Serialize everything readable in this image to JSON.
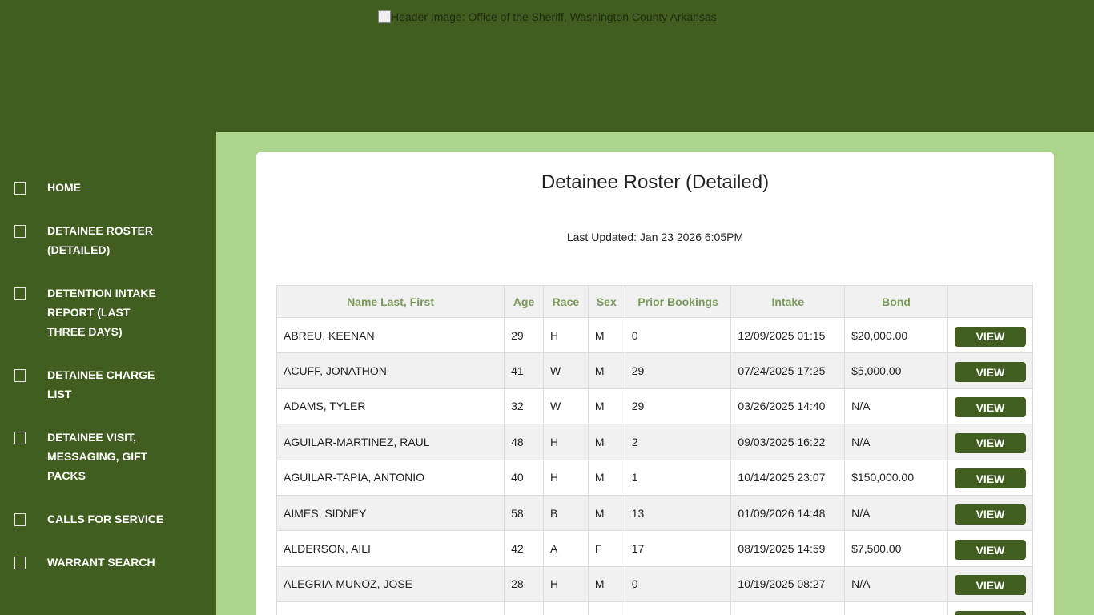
{
  "header": {
    "image_alt": "Header Image: Office of the Sheriff, Washington County Arkansas"
  },
  "sidebar": {
    "items": [
      {
        "label": "HOME",
        "icon": "missing-glyph-icon"
      },
      {
        "label": "DETAINEE ROSTER (DETAILED)",
        "icon": "missing-glyph-icon"
      },
      {
        "label": "DETENTION INTAKE REPORT (LAST THREE DAYS)",
        "icon": "missing-glyph-icon"
      },
      {
        "label": "DETAINEE CHARGE LIST",
        "icon": "missing-glyph-icon"
      },
      {
        "label": "DETAINEE VISIT, MESSAGING, GIFT PACKS",
        "icon": "missing-glyph-icon"
      },
      {
        "label": "CALLS FOR SERVICE",
        "icon": "missing-glyph-icon"
      },
      {
        "label": "WARRANT SEARCH",
        "icon": "missing-glyph-icon"
      }
    ]
  },
  "main": {
    "title": "Detainee Roster (Detailed)",
    "last_updated": "Last Updated: Jan 23 2026 6:05PM",
    "columns": [
      "Name Last, First",
      "Age",
      "Race",
      "Sex",
      "Prior Bookings",
      "Intake",
      "Bond",
      ""
    ],
    "view_label": "VIEW",
    "rows": [
      [
        "ABREU, KEENAN",
        "29",
        "H",
        "M",
        "0",
        "12/09/2025 01:15",
        "$20,000.00"
      ],
      [
        "ACUFF, JONATHON",
        "41",
        "W",
        "M",
        "29",
        "07/24/2025 17:25",
        "$5,000.00"
      ],
      [
        "ADAMS, TYLER",
        "32",
        "W",
        "M",
        "29",
        "03/26/2025 14:40",
        "N/A"
      ],
      [
        "AGUILAR-MARTINEZ, RAUL",
        "48",
        "H",
        "M",
        "2",
        "09/03/2025 16:22",
        "N/A"
      ],
      [
        "AGUILAR-TAPIA, ANTONIO",
        "40",
        "H",
        "M",
        "1",
        "10/14/2025 23:07",
        "$150,000.00"
      ],
      [
        "AIMES, SIDNEY",
        "58",
        "B",
        "M",
        "13",
        "01/09/2026 14:48",
        "N/A"
      ],
      [
        "ALDERSON, AILI",
        "42",
        "A",
        "F",
        "17",
        "08/19/2025 14:59",
        "$7,500.00"
      ],
      [
        "ALEGRIA-MUNOZ, JOSE",
        "28",
        "H",
        "M",
        "0",
        "10/19/2025 08:27",
        "N/A"
      ],
      [
        "",
        "",
        "",
        "",
        "",
        "",
        ""
      ]
    ]
  },
  "colors": {
    "brand_green": "#415e20",
    "light_green": "#acd48a",
    "header_text": "#7a9a5a"
  }
}
